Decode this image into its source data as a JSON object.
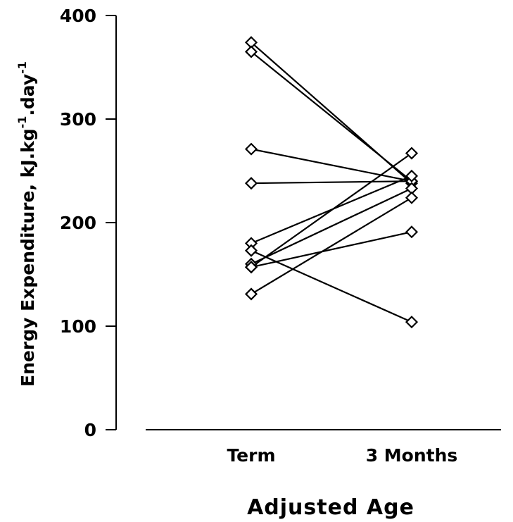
{
  "chart_data": {
    "type": "line",
    "categories": [
      "Term",
      "3 Months"
    ],
    "ylabel": "Energy Expenditure, kJ.kg⁻¹.day⁻¹",
    "ylabel_parts": {
      "main": "Energy Expenditure, kJ.kg",
      "sup1": "-1",
      "mid": ".day",
      "sup2": "-1"
    },
    "xlabel": "Adjusted Age",
    "ylim": [
      0,
      400
    ],
    "yticks": [
      0,
      100,
      200,
      300,
      400
    ],
    "marker": "diamond",
    "grid": false,
    "series": [
      {
        "values": [
          374,
          238
        ]
      },
      {
        "values": [
          365,
          240
        ]
      },
      {
        "values": [
          271,
          240
        ]
      },
      {
        "values": [
          238,
          240
        ]
      },
      {
        "values": [
          180,
          245
        ]
      },
      {
        "values": [
          173,
          104
        ]
      },
      {
        "values": [
          160,
          233
        ]
      },
      {
        "values": [
          157,
          191
        ]
      },
      {
        "values": [
          157,
          267
        ]
      },
      {
        "values": [
          131,
          224
        ]
      }
    ]
  }
}
